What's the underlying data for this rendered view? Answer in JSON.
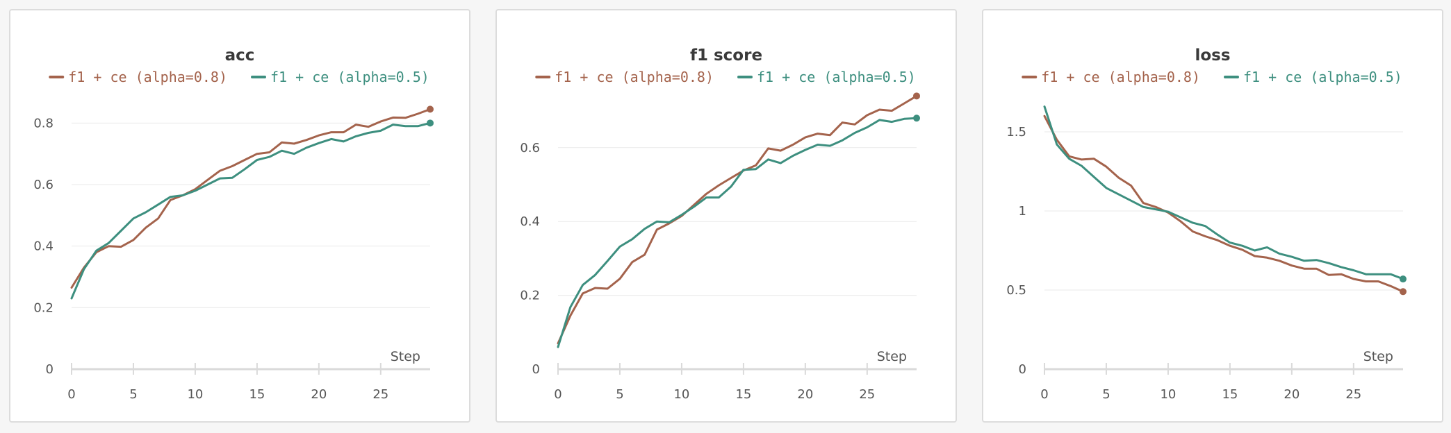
{
  "colors": {
    "series_a": "#a4634c",
    "series_b": "#3d8f7f",
    "grid": "#e9e9e9",
    "axis": "#dadada"
  },
  "chart_data": [
    {
      "type": "line",
      "title": "acc",
      "xlabel": "Step",
      "ylabel": "",
      "xlim": [
        0,
        29
      ],
      "ylim": [
        0,
        0.9
      ],
      "xticks": [
        0,
        5,
        10,
        15,
        20,
        25
      ],
      "yticks": [
        0,
        0.2,
        0.4,
        0.6,
        0.8
      ],
      "ytick_labels": [
        "0",
        "0.2",
        "0.4",
        "0.6",
        "0.8"
      ],
      "legend_position": "top",
      "grid": true,
      "x": [
        0,
        1,
        2,
        3,
        4,
        5,
        6,
        7,
        8,
        9,
        10,
        11,
        12,
        13,
        14,
        15,
        16,
        17,
        18,
        19,
        20,
        21,
        22,
        23,
        24,
        25,
        26,
        27,
        28,
        29
      ],
      "series": [
        {
          "name": "f1 + ce (alpha=0.8)",
          "color": "#a4634c",
          "values": [
            0.265,
            0.33,
            0.38,
            0.4,
            0.398,
            0.42,
            0.46,
            0.49,
            0.55,
            0.565,
            0.585,
            0.615,
            0.645,
            0.66,
            0.68,
            0.7,
            0.705,
            0.737,
            0.733,
            0.745,
            0.76,
            0.77,
            0.77,
            0.795,
            0.788,
            0.805,
            0.818,
            0.817,
            0.83,
            0.845
          ]
        },
        {
          "name": "f1 + ce (alpha=0.5)",
          "color": "#3d8f7f",
          "values": [
            0.23,
            0.325,
            0.385,
            0.41,
            0.45,
            0.49,
            0.51,
            0.535,
            0.56,
            0.565,
            0.58,
            0.6,
            0.62,
            0.622,
            0.65,
            0.68,
            0.69,
            0.71,
            0.7,
            0.72,
            0.735,
            0.748,
            0.74,
            0.757,
            0.768,
            0.775,
            0.795,
            0.79,
            0.79,
            0.8
          ]
        }
      ]
    },
    {
      "type": "line",
      "title": "f1 score",
      "xlabel": "Step",
      "ylabel": "",
      "xlim": [
        0,
        29
      ],
      "ylim": [
        0,
        0.75
      ],
      "xticks": [
        0,
        5,
        10,
        15,
        20,
        25
      ],
      "yticks": [
        0,
        0.2,
        0.4,
        0.6
      ],
      "ytick_labels": [
        "0",
        "0.2",
        "0.4",
        "0.6"
      ],
      "legend_position": "top",
      "grid": true,
      "x": [
        0,
        1,
        2,
        3,
        4,
        5,
        6,
        7,
        8,
        9,
        10,
        11,
        12,
        13,
        14,
        15,
        16,
        17,
        18,
        19,
        20,
        21,
        22,
        23,
        24,
        25,
        26,
        27,
        28,
        29
      ],
      "series": [
        {
          "name": "f1 + ce (alpha=0.8)",
          "color": "#a4634c",
          "values": [
            0.07,
            0.145,
            0.205,
            0.22,
            0.218,
            0.245,
            0.29,
            0.31,
            0.378,
            0.395,
            0.415,
            0.445,
            0.475,
            0.498,
            0.518,
            0.538,
            0.552,
            0.598,
            0.592,
            0.608,
            0.628,
            0.638,
            0.634,
            0.668,
            0.663,
            0.688,
            0.703,
            0.7,
            0.72,
            0.74
          ]
        },
        {
          "name": "f1 + ce (alpha=0.5)",
          "color": "#3d8f7f",
          "values": [
            0.06,
            0.168,
            0.228,
            0.255,
            0.293,
            0.332,
            0.352,
            0.38,
            0.4,
            0.398,
            0.418,
            0.44,
            0.465,
            0.465,
            0.495,
            0.54,
            0.542,
            0.568,
            0.558,
            0.578,
            0.594,
            0.608,
            0.605,
            0.62,
            0.64,
            0.655,
            0.675,
            0.67,
            0.678,
            0.68
          ]
        }
      ]
    },
    {
      "type": "line",
      "title": "loss",
      "xlabel": "Step",
      "ylabel": "",
      "xlim": [
        0,
        29
      ],
      "ylim": [
        0,
        1.75
      ],
      "xticks": [
        0,
        5,
        10,
        15,
        20,
        25
      ],
      "yticks": [
        0,
        0.5,
        1,
        1.5
      ],
      "ytick_labels": [
        "0",
        "0.5",
        "1",
        "1.5"
      ],
      "legend_position": "top",
      "grid": true,
      "x": [
        0,
        1,
        2,
        3,
        4,
        5,
        6,
        7,
        8,
        9,
        10,
        11,
        12,
        13,
        14,
        15,
        16,
        17,
        18,
        19,
        20,
        21,
        22,
        23,
        24,
        25,
        26,
        27,
        28,
        29
      ],
      "series": [
        {
          "name": "f1 + ce (alpha=0.8)",
          "color": "#a4634c",
          "values": [
            1.6,
            1.45,
            1.345,
            1.325,
            1.33,
            1.28,
            1.21,
            1.16,
            1.05,
            1.025,
            0.99,
            0.935,
            0.87,
            0.84,
            0.815,
            0.78,
            0.755,
            0.715,
            0.705,
            0.685,
            0.655,
            0.635,
            0.635,
            0.595,
            0.6,
            0.57,
            0.555,
            0.555,
            0.525,
            0.49
          ]
        },
        {
          "name": "f1 + ce (alpha=0.5)",
          "color": "#3d8f7f",
          "values": [
            1.66,
            1.42,
            1.33,
            1.285,
            1.215,
            1.145,
            1.105,
            1.065,
            1.025,
            1.01,
            0.995,
            0.96,
            0.925,
            0.905,
            0.85,
            0.8,
            0.78,
            0.75,
            0.77,
            0.73,
            0.71,
            0.685,
            0.69,
            0.67,
            0.645,
            0.625,
            0.6,
            0.6,
            0.6,
            0.57
          ]
        }
      ]
    }
  ]
}
